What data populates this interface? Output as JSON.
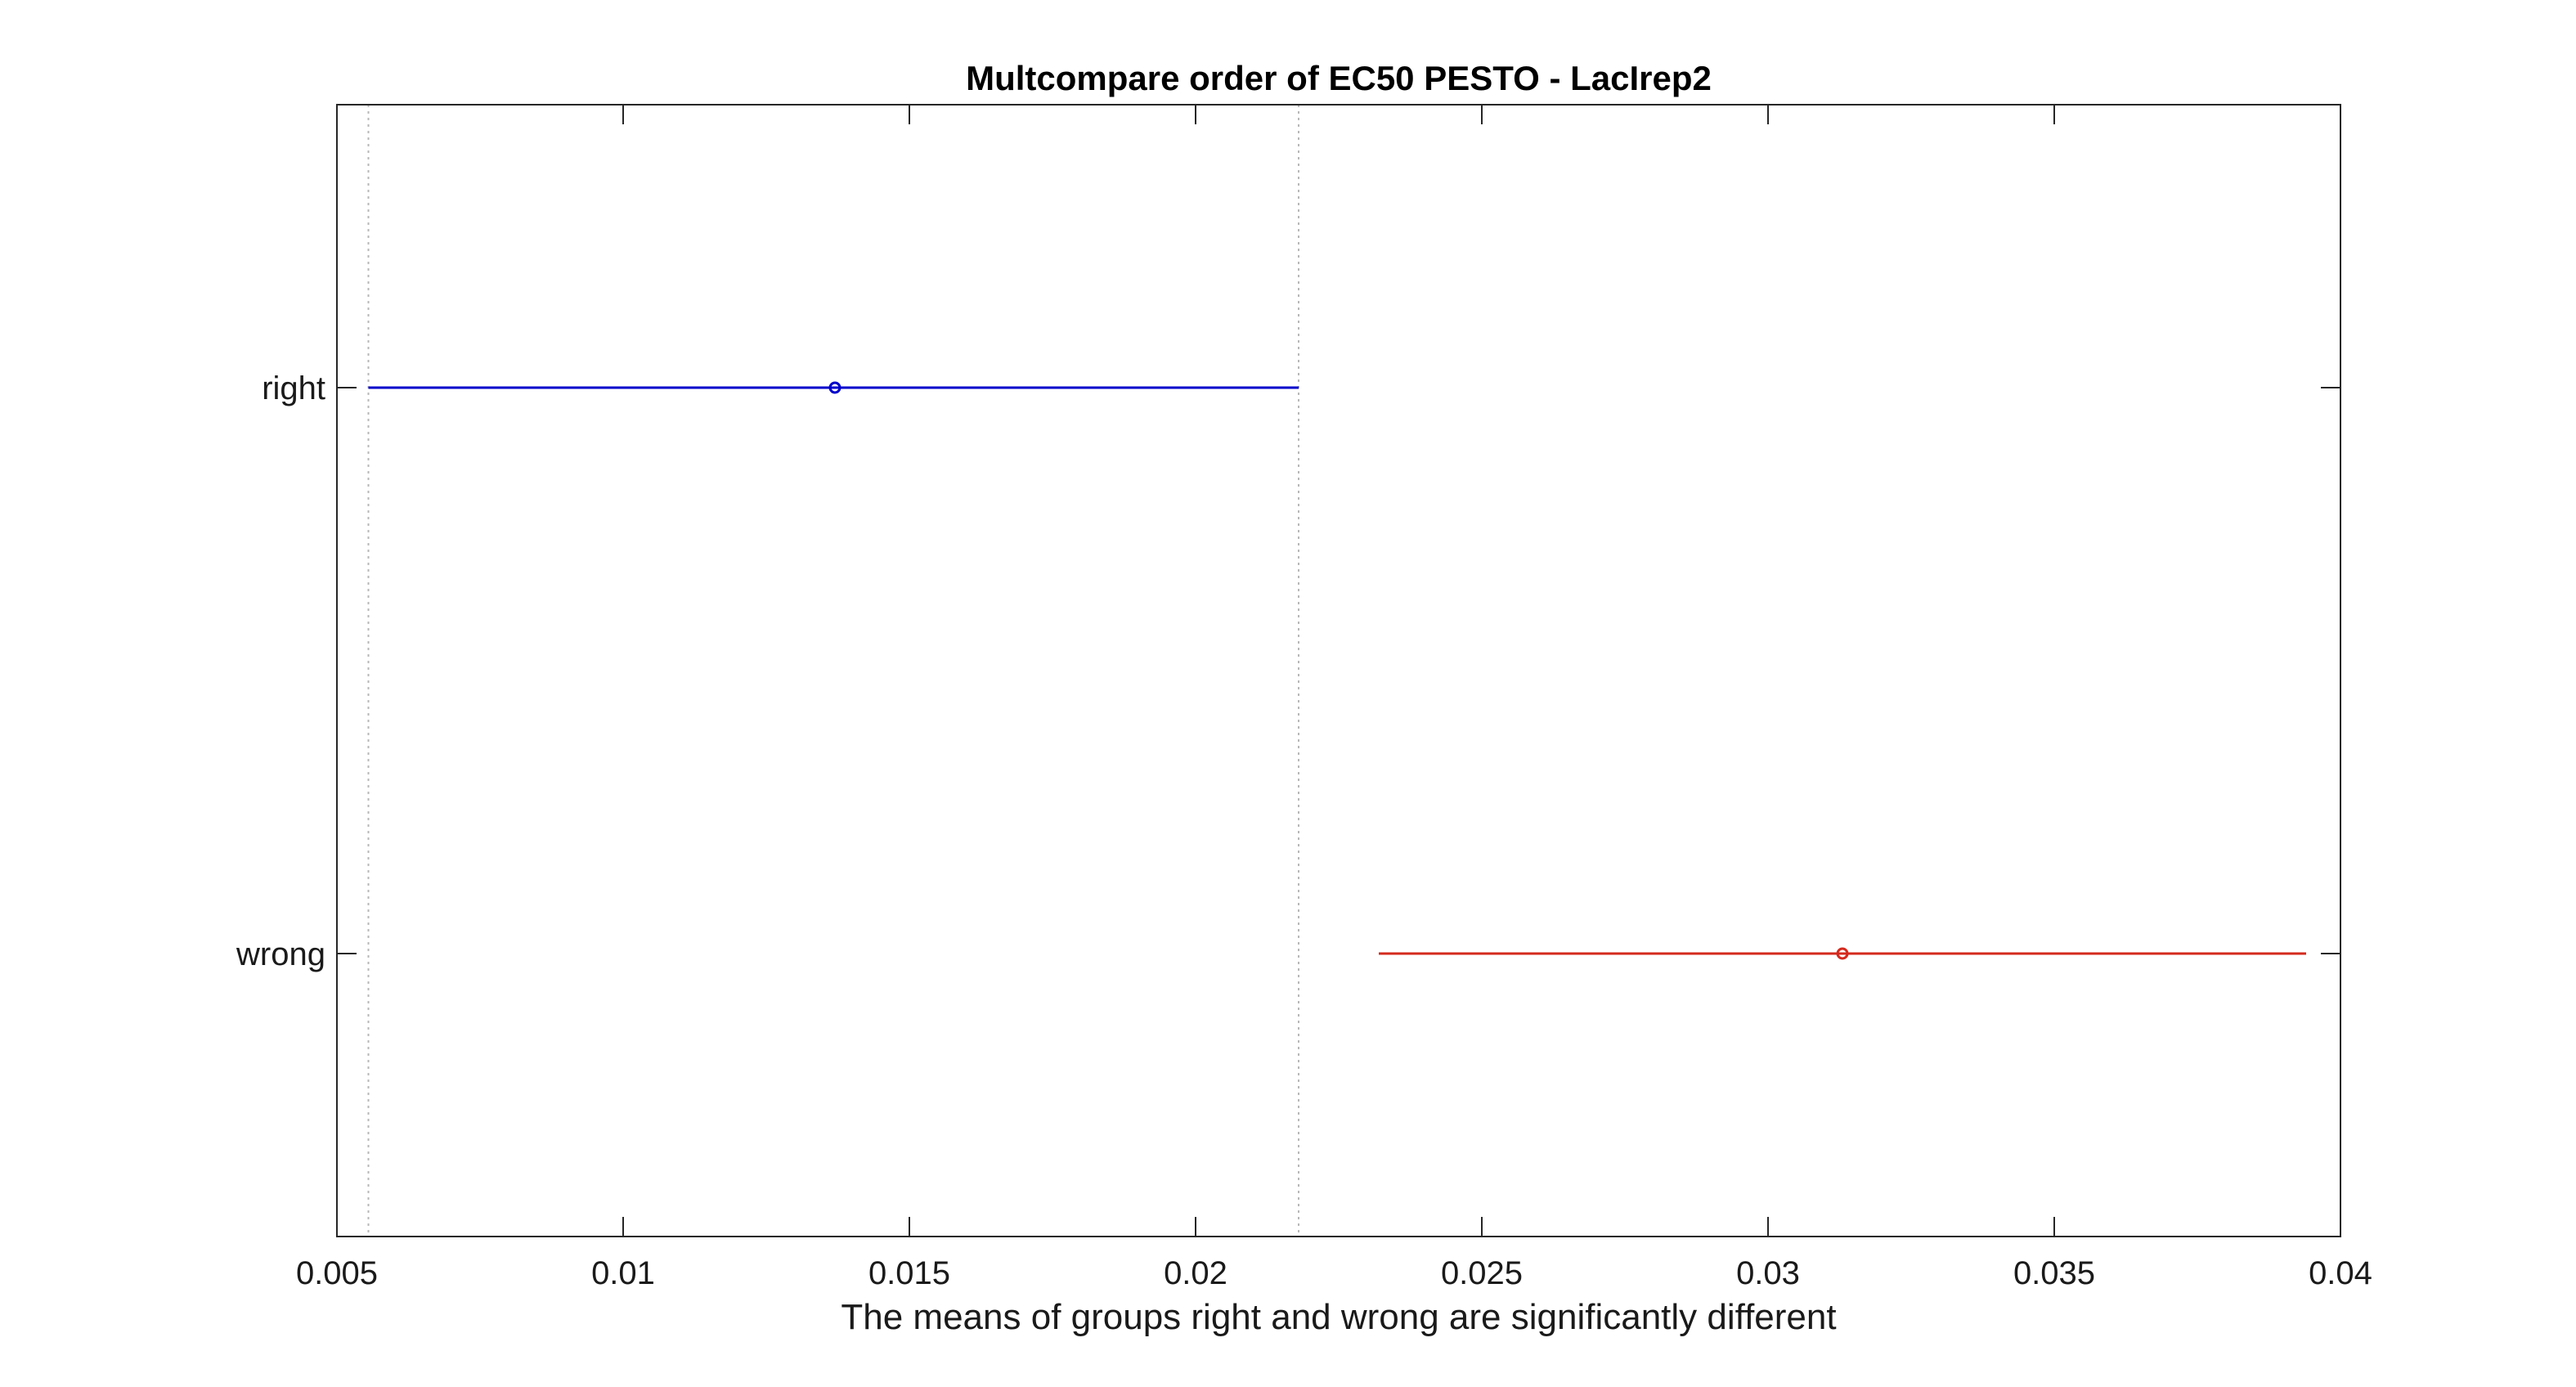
{
  "chart_data": {
    "type": "interval",
    "title": "Multcompare order of EC50 PESTO - LacIrep2",
    "xlabel": "The means of groups right and wrong are significantly different",
    "ylabel": "",
    "xlim": [
      0.005,
      0.04
    ],
    "x_ticks": [
      0.005,
      0.01,
      0.015,
      0.02,
      0.025,
      0.03,
      0.035,
      0.04
    ],
    "x_tick_labels": [
      "0.005",
      "0.01",
      "0.015",
      "0.02",
      "0.025",
      "0.03",
      "0.035",
      "0.04"
    ],
    "grid": false,
    "groups": [
      {
        "label": "right",
        "mean": 0.0137,
        "lower": 0.00555,
        "upper": 0.0218,
        "color": "#0000cc"
      },
      {
        "label": "wrong",
        "mean": 0.0313,
        "lower": 0.0232,
        "upper": 0.0394,
        "color": "#d42a1e"
      }
    ],
    "reference_lines": [
      0.00555,
      0.0218
    ]
  }
}
